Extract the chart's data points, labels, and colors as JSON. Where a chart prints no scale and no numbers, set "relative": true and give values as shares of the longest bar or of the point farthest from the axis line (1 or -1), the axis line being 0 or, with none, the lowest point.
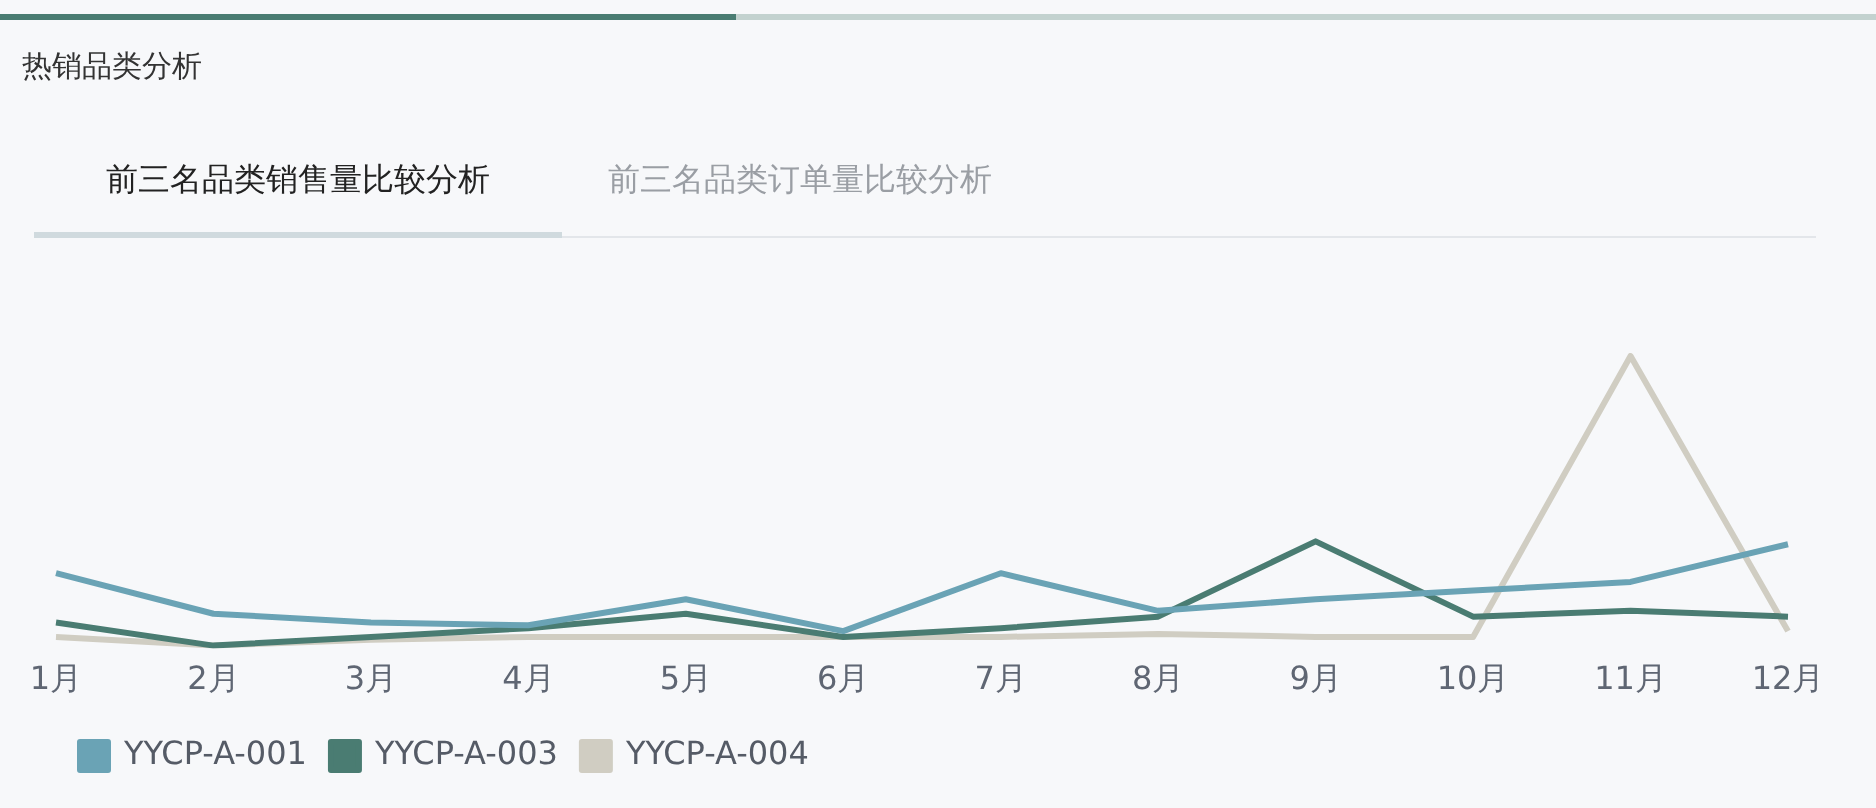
{
  "chart_data": {
    "type": "line",
    "title": "热销品类分析",
    "subtitle": "前三名品类销售量比较分析",
    "annotations": [
      "前三名品类订单量比较分析"
    ],
    "relative": true,
    "categories": [
      "1月",
      "2月",
      "3月",
      "4月",
      "5月",
      "6月",
      "7月",
      "8月",
      "9月",
      "10月",
      "11月",
      "12月"
    ],
    "series": [
      {
        "name": "YYCP-A-001",
        "color": "#6aa3b5",
        "values": [
          0.25,
          0.11,
          0.08,
          0.07,
          0.16,
          0.05,
          0.25,
          0.12,
          0.16,
          0.19,
          0.22,
          0.35
        ]
      },
      {
        "name": "YYCP-A-003",
        "color": "#4a7c72",
        "values": [
          0.08,
          0,
          0.03,
          0.06,
          0.11,
          0.03,
          0.06,
          0.1,
          0.36,
          0.1,
          0.12,
          0.1
        ]
      },
      {
        "name": "YYCP-A-004",
        "color": "#d0cdc2",
        "values": [
          0.03,
          0,
          0.02,
          0.03,
          0.03,
          0.03,
          0.03,
          0.04,
          0.03,
          0.03,
          1,
          0.05
        ]
      }
    ],
    "grid": false,
    "legend": "bottom left",
    "marker": "none",
    "line_style": "solid"
  }
}
